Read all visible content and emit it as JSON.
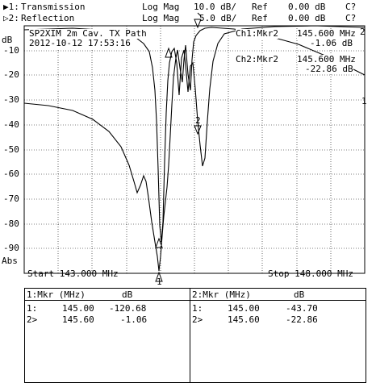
{
  "header": {
    "traces": [
      {
        "marker": "▶1:",
        "name": "Transmission",
        "format": "Log Mag",
        "scale": "10.0 dB/",
        "ref_label": "Ref",
        "ref_value": "0.00 dB",
        "cal": "C?"
      },
      {
        "marker": "▷2:",
        "name": "Reflection",
        "format": "Log Mag",
        "scale": "5.0 dB/",
        "ref_label": "Ref",
        "ref_value": "0.00 dB",
        "cal": "C?"
      }
    ]
  },
  "plot": {
    "unit_label": "dB",
    "bottom_unit": "Abs",
    "y_ticks": [
      "-10",
      "-20",
      "-30",
      "-40",
      "-50",
      "-60",
      "-70",
      "-80",
      "-90"
    ],
    "title_line1": "SP2XIM 2m Cav. TX Path",
    "title_line2": "2012-10-12 17:53:16",
    "ch1_label": "Ch1:Mkr2",
    "ch1_freq": "145.600 MHz",
    "ch1_value": "-1.06 dB",
    "ch2_label": "Ch2:Mkr2",
    "ch2_freq": "145.600 MHz",
    "ch2_value": "-22.86 dB",
    "trace1_end_label": "1",
    "trace2_end_label": "2",
    "marker1_label": "1",
    "marker2_label": "2",
    "start": "Start 143.000 MHz",
    "stop": "Stop 148.000 MHz"
  },
  "table": {
    "left": {
      "header": {
        "col1": "1:Mkr (MHz)",
        "col2": "dB"
      },
      "rows": [
        {
          "id": "1:",
          "freq": "145.00",
          "value": "-120.68"
        },
        {
          "id": "2>",
          "freq": "145.60",
          "value": "-1.06"
        }
      ]
    },
    "right": {
      "header": {
        "col1": "2:Mkr (MHz)",
        "col2": "dB"
      },
      "rows": [
        {
          "id": "1:",
          "freq": "145.00",
          "value": "-43.70"
        },
        {
          "id": "2>",
          "freq": "145.60",
          "value": "-22.86"
        }
      ]
    }
  }
}
